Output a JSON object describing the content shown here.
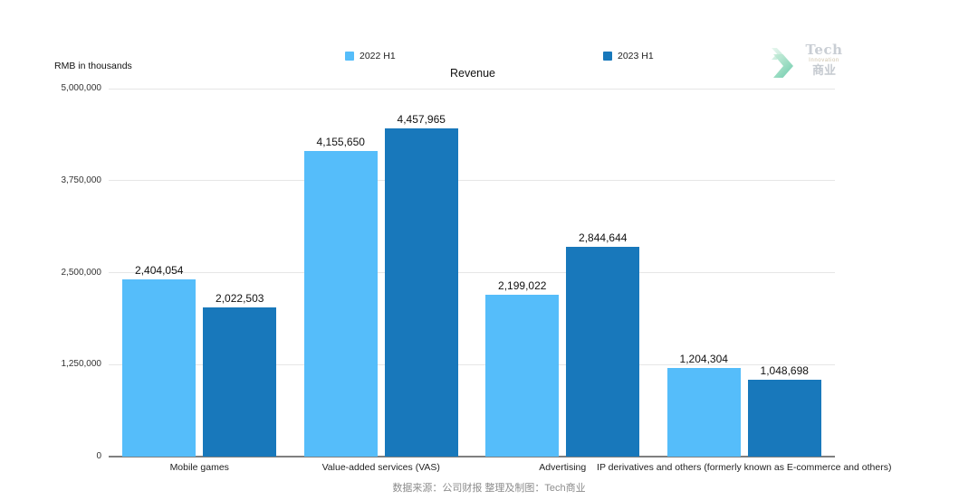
{
  "header": {
    "unit_label": "RMB in thousands",
    "logo": {
      "line1": "Tech",
      "line2": "Innovation",
      "line3": "商业"
    }
  },
  "footer": {
    "source_note": "数据来源：公司财报 整理及制图：Tech商业"
  },
  "chart_data": {
    "type": "bar",
    "title": "Revenue",
    "unit": "RMB in thousands",
    "categories": [
      "Mobile games",
      "Value-added services (VAS)",
      "Advertising",
      "IP derivatives and others (formerly known as E-commerce and others)"
    ],
    "series": [
      {
        "name": "2022 H1",
        "color": "#55BDFA",
        "values": [
          2404054,
          4155650,
          2199022,
          1204304
        ]
      },
      {
        "name": "2023 H1",
        "color": "#1878BB",
        "values": [
          2022503,
          4457965,
          2844644,
          1048698
        ]
      }
    ],
    "value_labels": [
      [
        "2,404,054",
        "4,155,650",
        "2,199,022",
        "1,204,304"
      ],
      [
        "2,022,503",
        "4,457,965",
        "2,844,644",
        "1,048,698"
      ]
    ],
    "ylim": [
      0,
      5000000
    ],
    "yticks": [
      0,
      1250000,
      2500000,
      3750000,
      5000000
    ],
    "ytick_labels": [
      "0",
      "1,250,000",
      "2,500,000",
      "3,750,000",
      "5,000,000"
    ],
    "grid": "horizontal",
    "legend_position": "top",
    "colors": {
      "gridline": "#e6e6e6",
      "axis": "#7f7f7f",
      "logo_accent": "#7fd2b3"
    }
  }
}
